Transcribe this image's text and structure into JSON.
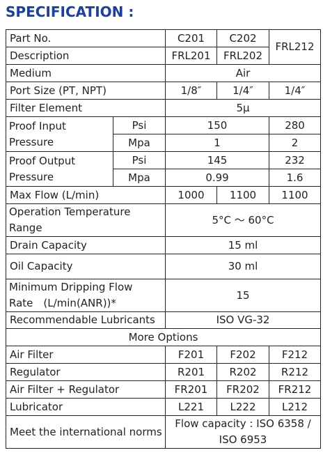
{
  "title": "SPECIFICATION :",
  "spec": {
    "part_no_label": "Part No.",
    "part_c201": "C201",
    "part_c202": "C202",
    "part_frl212": "FRL212",
    "description_label": "Description",
    "desc_frl201": "FRL201",
    "desc_frl202": "FRL202",
    "medium_label": "Medium",
    "medium_value": "Air",
    "port_size_label": "Port Size (PT, NPT)",
    "port_1": "1/8″",
    "port_2": "1/4″",
    "port_3": "1/4″",
    "filter_element_label": "Filter Element",
    "filter_element_value": "5μ",
    "proof_input_label_1": "Proof Input",
    "proof_input_label_2": "Pressure",
    "proof_output_label_1": "Proof Output",
    "proof_output_label_2": "Pressure",
    "unit_psi": "Psi",
    "unit_mpa": "Mpa",
    "pi_psi_a": "150",
    "pi_psi_b": "280",
    "pi_mpa_a": "1",
    "pi_mpa_b": "2",
    "po_psi_a": "145",
    "po_psi_b": "232",
    "po_mpa_a": "0.99",
    "po_mpa_b": "1.6",
    "max_flow_label": "Max Flow (L/min)",
    "flow_1": "1000",
    "flow_2": "1100",
    "flow_3": "1100",
    "op_temp_label_1": "Operation Temperature",
    "op_temp_label_2": "Range",
    "op_temp_value": "5°C ～ 60°C",
    "drain_capacity_label": "Drain Capacity",
    "drain_capacity_value": "15 ml",
    "oil_capacity_label": "Oil Capacity",
    "oil_capacity_value": "30 ml",
    "min_drip_label_1": "Minimum Dripping Flow",
    "min_drip_label_2": "Rate　(L/min(ANR))*",
    "min_drip_value": "15",
    "lubricants_label": "Recommendable Lubricants",
    "lubricants_value": "ISO VG-32",
    "more_options": "More Options",
    "air_filter_label": "Air Filter",
    "af_1": "F201",
    "af_2": "F202",
    "af_3": "F212",
    "regulator_label": "Regulator",
    "reg_1": "R201",
    "reg_2": "R202",
    "reg_3": "R212",
    "af_reg_label": "Air Filter + Regulator",
    "fr_1": "FR201",
    "fr_2": "FR202",
    "fr_3": "FR212",
    "lubricator_label": "Lubricator",
    "lub_1": "L221",
    "lub_2": "L222",
    "lub_3": "L212",
    "norms_label": "Meet the international norms",
    "norms_value_1": "Flow capacity : ISO 6358 /",
    "norms_value_2": "ISO 6953"
  }
}
